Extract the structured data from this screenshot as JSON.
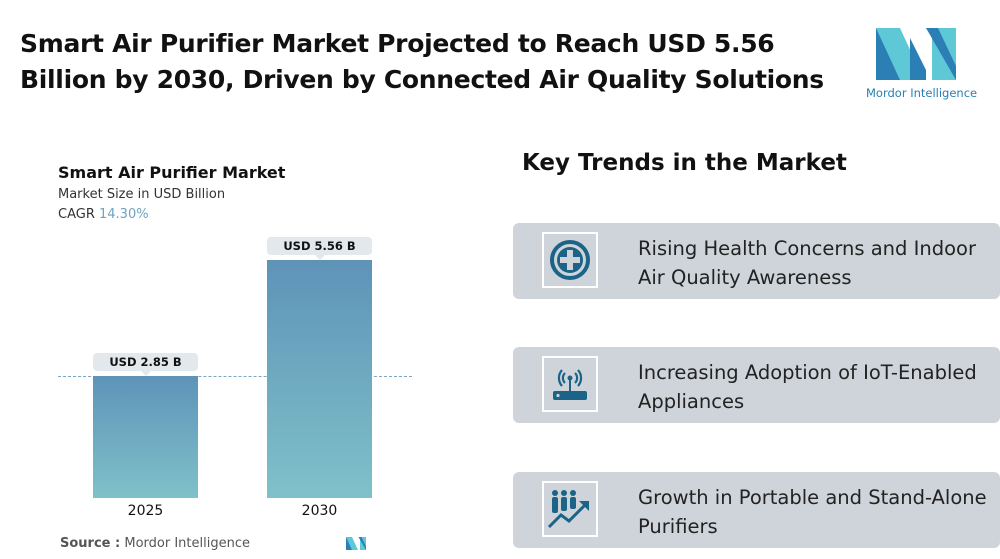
{
  "title": "Smart Air Purifier Market Projected to Reach USD 5.56 Billion by 2030, Driven by Connected Air Quality Solutions",
  "logo": {
    "text": "Mordor Intelligence"
  },
  "chart_data": {
    "type": "bar",
    "title": "Smart Air Purifier Market",
    "subtitle": "Market Size in USD Billion",
    "cagr_label": "CAGR",
    "cagr_value": "14.30%",
    "categories": [
      "2025",
      "2030"
    ],
    "values": [
      2.85,
      5.56
    ],
    "data_labels": [
      "USD 2.85 B",
      "USD 5.56 B"
    ],
    "colors": {
      "bar_top": "#5e93b8",
      "bar_bottom": "#7fc1c9"
    }
  },
  "source": {
    "label": "Source :",
    "value": "Mordor Intelligence"
  },
  "trends": {
    "heading": "Key Trends in the Market",
    "items": [
      {
        "icon": "medical-cross-icon",
        "text": "Rising Health Concerns and Indoor Air Quality Awareness"
      },
      {
        "icon": "wifi-router-icon",
        "text": "Increasing Adoption of IoT-Enabled Appliances"
      },
      {
        "icon": "people-growth-icon",
        "text": "Growth in Portable and Stand-Alone Purifiers"
      }
    ]
  }
}
